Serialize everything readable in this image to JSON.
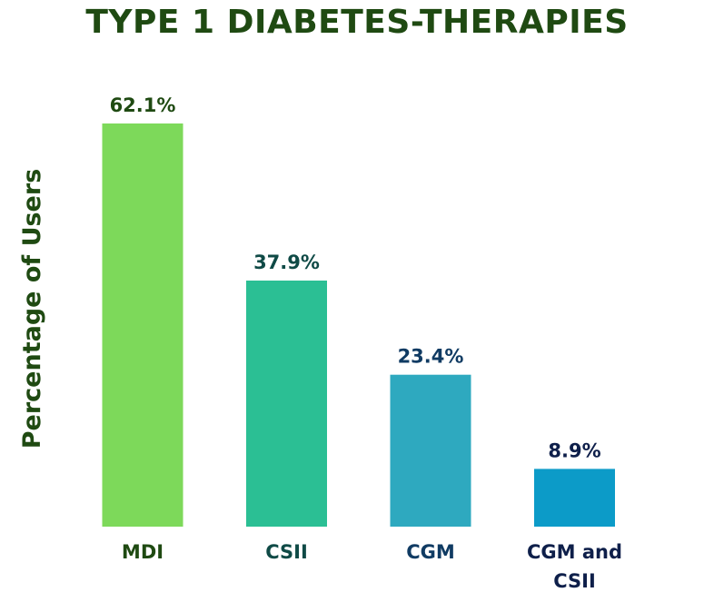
{
  "colors": {
    "title": "#1f4a12",
    "ylabel": "#1f4a12"
  },
  "chart_data": {
    "type": "bar",
    "title": "TYPE 1 DIABETES-THERAPIES",
    "ylabel": "Percentage of Users",
    "xlabel": "",
    "categories": [
      "MDI",
      "CSII",
      "CGM",
      "CGM and CSII"
    ],
    "values": [
      62.1,
      37.9,
      23.4,
      8.9
    ],
    "value_labels": [
      "62.1%",
      "37.9%",
      "23.4%",
      "8.9%"
    ],
    "bar_colors": [
      "#7dd95a",
      "#2bbf94",
      "#2ea9bf",
      "#0c9bc8"
    ],
    "label_colors": [
      "#1f4a12",
      "#0f4a46",
      "#103b63",
      "#0e1f4a"
    ],
    "ylim": [
      0,
      62.1
    ],
    "grid": false,
    "legend": "none"
  }
}
